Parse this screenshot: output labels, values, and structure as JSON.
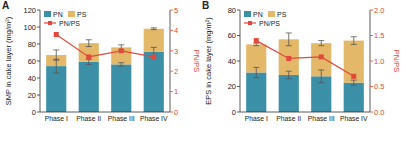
{
  "chart_data": [
    {
      "type": "bar",
      "title": "A",
      "stacked": true,
      "legend": "upper left",
      "categories": [
        "Phase I",
        "Phase II",
        "Phase III",
        "Phase IV"
      ],
      "ylabel": "SMP in cake layer (mg/m²)",
      "y2label": "PN/PS",
      "ylim": [
        0,
        120
      ],
      "yticks": [
        0,
        20,
        40,
        60,
        80,
        100,
        120
      ],
      "y2lim": [
        0,
        5
      ],
      "y2ticks": [
        0,
        1,
        2,
        3,
        4,
        5
      ],
      "series": [
        {
          "name": "PN",
          "color": "#3b8fa6",
          "values": [
            54,
            59,
            56,
            71
          ],
          "errors": [
            8,
            3,
            2,
            5
          ]
        },
        {
          "name": "PS",
          "color": "#e3b868",
          "values": [
            13,
            22,
            20,
            27
          ],
          "errors": [
            6,
            4,
            3,
            1
          ]
        },
        {
          "name": "PN/PS",
          "type": "line",
          "axis": "y2",
          "color": "#e0493b",
          "marker": "square",
          "values": [
            3.8,
            2.7,
            3.0,
            2.7
          ]
        }
      ]
    },
    {
      "type": "bar",
      "title": "B",
      "stacked": true,
      "legend": "upper left",
      "categories": [
        "Phase I",
        "Phase II",
        "Phase III",
        "Phase IV"
      ],
      "ylabel": "EPS in cake layer (mg/m²)",
      "y2label": "PN/PS",
      "ylim": [
        0,
        80
      ],
      "yticks": [
        0,
        20,
        40,
        60,
        80
      ],
      "y2lim": [
        0,
        2
      ],
      "y2ticks": [
        {
          "value": 0,
          "label": "0.0"
        },
        0.5,
        {
          "value": 1,
          "label": "1.0"
        },
        1.5,
        {
          "value": 2,
          "label": "2.0"
        }
      ],
      "series": [
        {
          "name": "PN",
          "color": "#3b8fa6",
          "values": [
            31,
            29,
            28,
            23
          ],
          "errors": [
            4,
            3,
            5,
            2
          ]
        },
        {
          "name": "PS",
          "color": "#e3b868",
          "values": [
            22,
            28,
            26,
            33
          ],
          "errors": [
            1,
            5,
            2,
            3
          ]
        },
        {
          "name": "PN/PS",
          "type": "line",
          "axis": "y2",
          "color": "#e0493b",
          "marker": "square",
          "values": [
            1.4,
            1.05,
            1.08,
            0.7
          ]
        }
      ]
    }
  ]
}
